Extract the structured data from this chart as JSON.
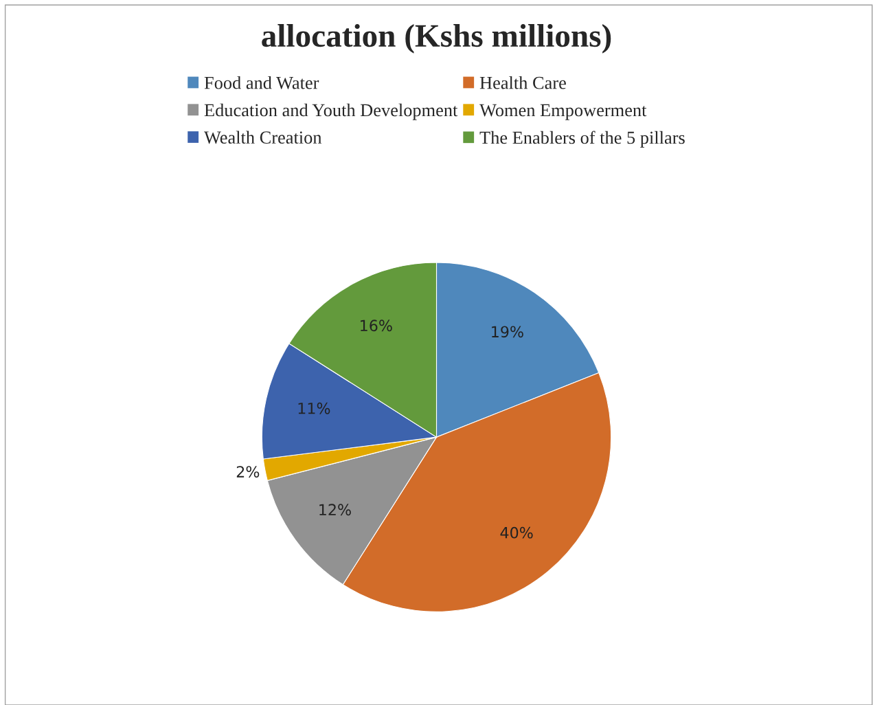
{
  "chart_data": {
    "type": "pie",
    "title": "allocation (Kshs millions)",
    "categories": [
      "Food and Water",
      "Health Care",
      "Education and Youth Development",
      "Women Empowerment",
      "Wealth Creation",
      "The Enablers of the 5 pillars"
    ],
    "values": [
      19,
      40,
      12,
      2,
      11,
      16
    ],
    "colors": [
      "#4f88bc",
      "#d26c29",
      "#929292",
      "#e2a800",
      "#3d63ad",
      "#639a3c"
    ],
    "value_labels": [
      "19%",
      "40%",
      "12%",
      "2%",
      "11%",
      "16%"
    ],
    "legend": "top"
  }
}
